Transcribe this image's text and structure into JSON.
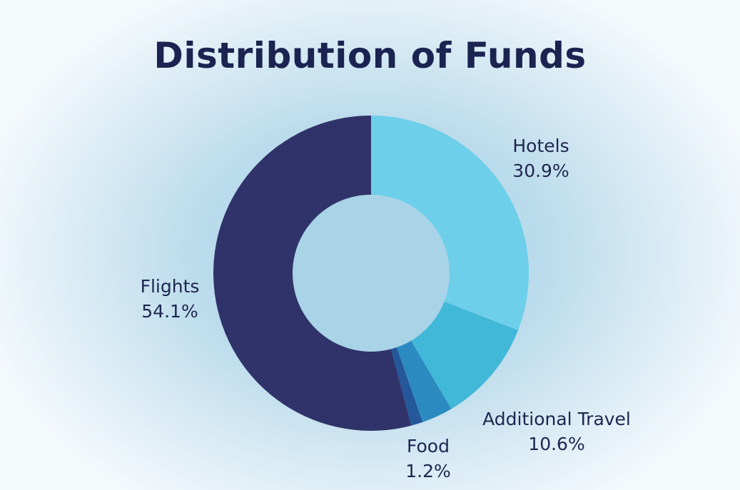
{
  "chart_data": {
    "type": "pie",
    "title": "Distribution of Funds",
    "donut": true,
    "legend": "none",
    "slices": [
      {
        "label": "Hotels",
        "value": 30.9,
        "display": "30.9%",
        "color": "#6dcfe9"
      },
      {
        "label": "Additional Travel",
        "value": 10.6,
        "display": "10.6%",
        "color": "#42b8d8"
      },
      {
        "label": "",
        "value": 3.2,
        "display": "",
        "color": "#2b8bc0"
      },
      {
        "label": "Food",
        "value": 1.2,
        "display": "1.2%",
        "color": "#24589a"
      },
      {
        "label": "Flights",
        "value": 54.1,
        "display": "54.1%",
        "color": "#30336a"
      }
    ]
  },
  "colors": {
    "title": "#1b2450",
    "label_text": "#1e2650",
    "hole": "#a9d3e7"
  }
}
